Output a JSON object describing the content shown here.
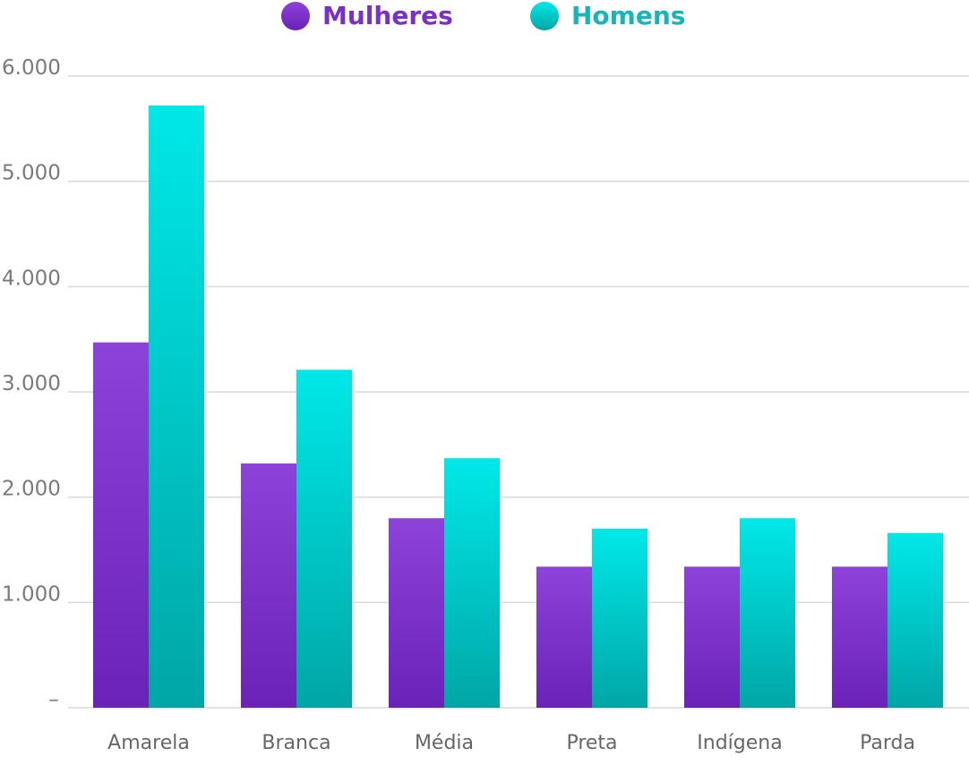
{
  "chart_data": {
    "type": "bar",
    "categories": [
      "Amarela",
      "Branca",
      "Média",
      "Preta",
      "Indígena",
      "Parda"
    ],
    "series": [
      {
        "name": "Mulheres",
        "values": [
          3470,
          2320,
          1800,
          1340,
          1340,
          1340
        ]
      },
      {
        "name": "Homens",
        "values": [
          5720,
          3210,
          2370,
          1700,
          1800,
          1660
        ]
      }
    ],
    "yticks": [
      {
        "value": 0,
        "label": "–"
      },
      {
        "value": 1000,
        "label": "1.000"
      },
      {
        "value": 2000,
        "label": "2.000"
      },
      {
        "value": 3000,
        "label": "3.000"
      },
      {
        "value": 4000,
        "label": "4.000"
      },
      {
        "value": 5000,
        "label": "5.000"
      },
      {
        "value": 6000,
        "label": "6.000"
      }
    ],
    "ylim": [
      0,
      6000
    ],
    "grid": true,
    "legend_position": "top-center",
    "title": "",
    "xlabel": "",
    "ylabel": ""
  },
  "colors": {
    "mulheres_top": "#8d42d9",
    "mulheres_bottom": "#6a22b8",
    "homens_top": "#00e8e8",
    "homens_bottom": "#00a6a6",
    "mulheres_label": "#7a2fc9",
    "homens_label": "#14b5bd",
    "grid": "#d9d9d9"
  }
}
